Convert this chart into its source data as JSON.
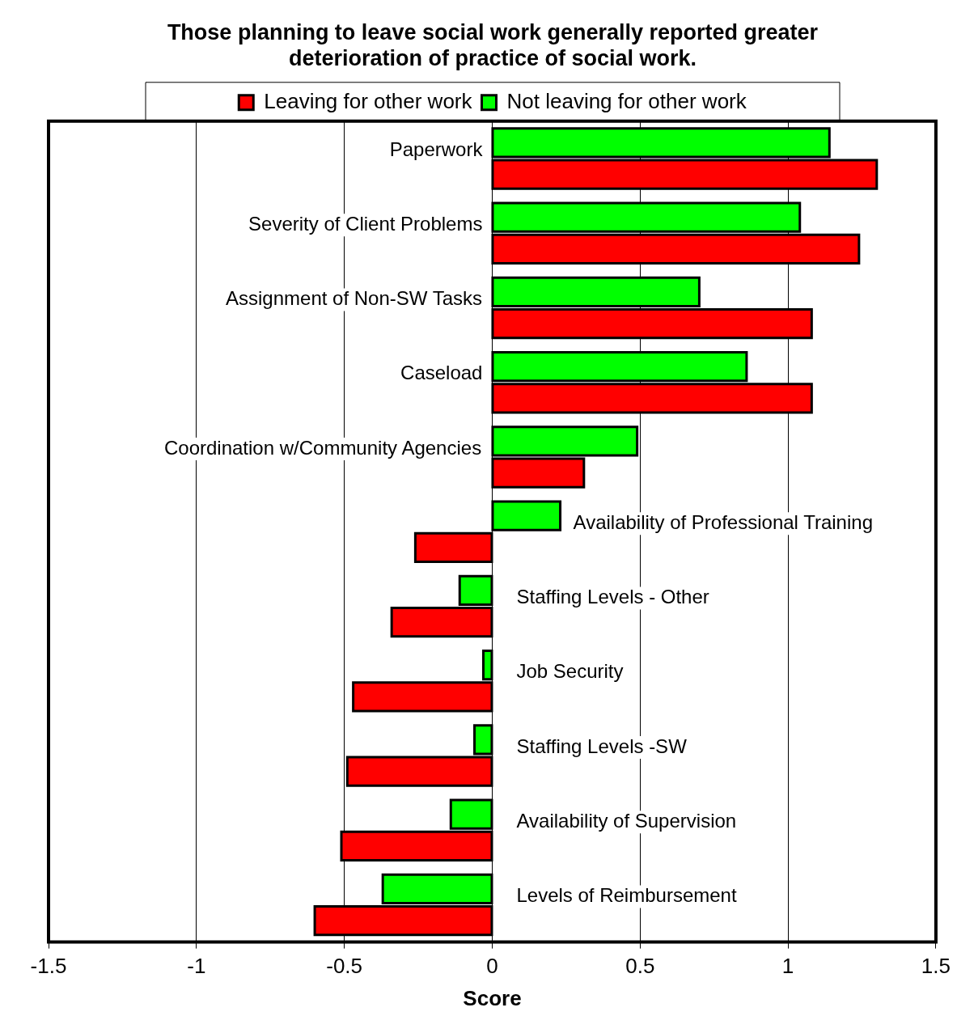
{
  "chart_data": {
    "type": "bar",
    "orientation": "horizontal",
    "title": "Those planning to leave social work generally reported greater deterioration of practice of social work.",
    "xlabel": "Score",
    "categories": [
      "Paperwork",
      "Severity of Client Problems",
      "Assignment of Non-SW Tasks",
      "Caseload",
      "Coordination w/Community Agencies",
      "Availability of Professional Training",
      "Staffing Levels - Other",
      "Job Security",
      "Staffing Levels -SW",
      "Availability of Supervision",
      "Levels of Reimbursement"
    ],
    "series": [
      {
        "name": "Leaving for other work",
        "color": "#ff0000",
        "values": [
          1.3,
          1.24,
          1.08,
          1.08,
          0.31,
          -0.26,
          -0.34,
          -0.47,
          -0.49,
          -0.51,
          -0.6
        ]
      },
      {
        "name": "Not leaving for other work",
        "color": "#00ff00",
        "values": [
          1.14,
          1.04,
          0.7,
          0.86,
          0.49,
          0.23,
          -0.11,
          -0.03,
          -0.06,
          -0.14,
          -0.37
        ]
      }
    ],
    "xlim": [
      -1.5,
      1.5
    ],
    "xticks": [
      -1.5,
      -1,
      -0.5,
      0,
      0.5,
      1,
      1.5
    ],
    "grid": "x",
    "legend": "top"
  }
}
